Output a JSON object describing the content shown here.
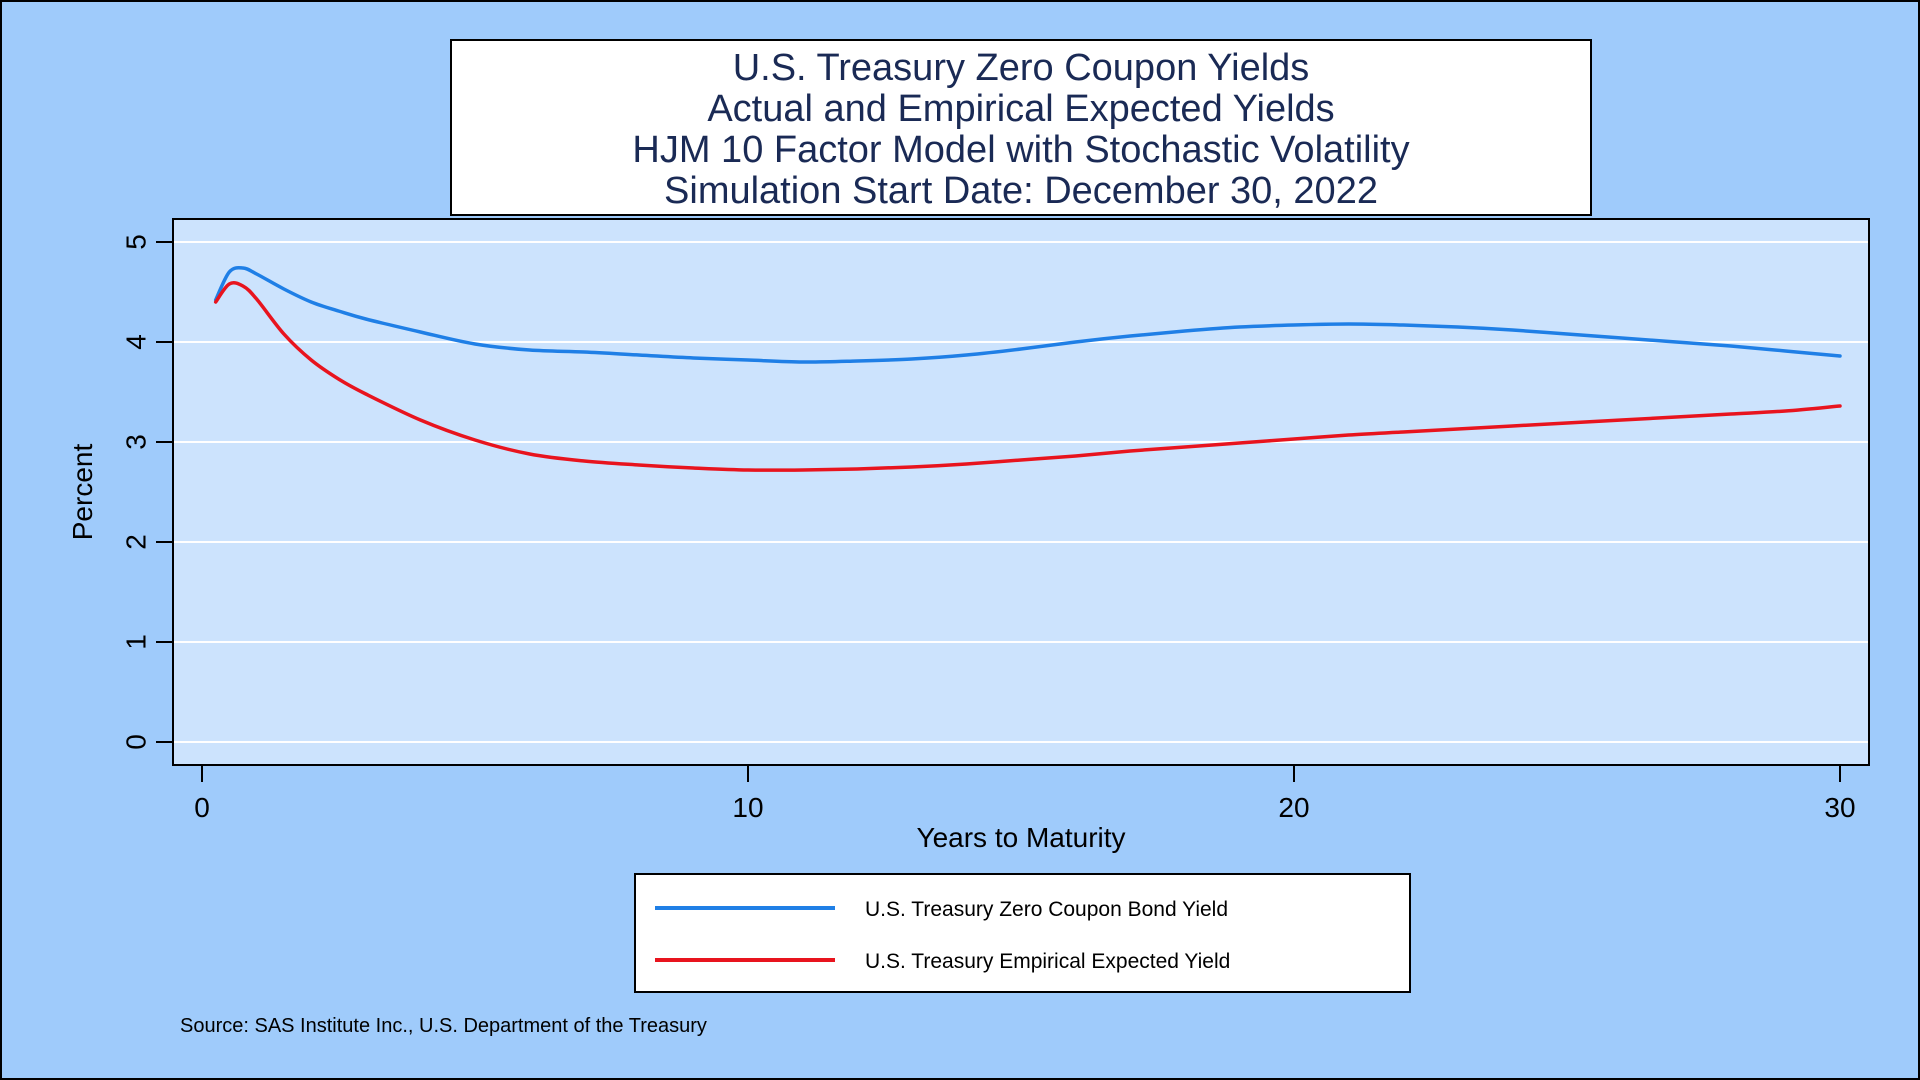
{
  "chart_data": {
    "type": "line",
    "title_lines": [
      "U.S. Treasury Zero Coupon Yields",
      "Actual and Empirical Expected Yields",
      "HJM 10 Factor Model with Stochastic Volatility",
      "Simulation Start Date: December 30, 2022"
    ],
    "xlabel": "Years to Maturity",
    "ylabel": "Percent",
    "xlim": [
      0,
      30
    ],
    "ylim": [
      0,
      5
    ],
    "x_ticks": [
      0,
      10,
      20,
      30
    ],
    "y_ticks": [
      0,
      1,
      2,
      3,
      4,
      5
    ],
    "grid": "horizontal",
    "legend_position": "bottom-center",
    "note": "Source: SAS Institute Inc., U.S. Department of the Treasury",
    "colors": {
      "background": "#9fcbfb",
      "plot_area": "#cce3fd",
      "gridline": "#ffffff"
    },
    "series": [
      {
        "name": "U.S. Treasury Zero Coupon Bond Yield",
        "color": "#1f7fe6",
        "points": [
          [
            0.25,
            4.42
          ],
          [
            0.5,
            4.7
          ],
          [
            0.75,
            4.74
          ],
          [
            1,
            4.68
          ],
          [
            1.5,
            4.53
          ],
          [
            2,
            4.4
          ],
          [
            2.5,
            4.31
          ],
          [
            3,
            4.23
          ],
          [
            4,
            4.1
          ],
          [
            5,
            3.98
          ],
          [
            6,
            3.92
          ],
          [
            7,
            3.9
          ],
          [
            8,
            3.87
          ],
          [
            9,
            3.84
          ],
          [
            10,
            3.82
          ],
          [
            11,
            3.8
          ],
          [
            12,
            3.81
          ],
          [
            13,
            3.83
          ],
          [
            14,
            3.87
          ],
          [
            15,
            3.93
          ],
          [
            16,
            4.0
          ],
          [
            17,
            4.06
          ],
          [
            18,
            4.11
          ],
          [
            19,
            4.15
          ],
          [
            20,
            4.17
          ],
          [
            21,
            4.18
          ],
          [
            22,
            4.17
          ],
          [
            23,
            4.15
          ],
          [
            24,
            4.12
          ],
          [
            25,
            4.08
          ],
          [
            26,
            4.04
          ],
          [
            27,
            4.0
          ],
          [
            28,
            3.96
          ],
          [
            29,
            3.91
          ],
          [
            30,
            3.86
          ]
        ]
      },
      {
        "name": "U.S. Treasury Empirical Expected Yield",
        "color": "#e8141e",
        "points": [
          [
            0.25,
            4.4
          ],
          [
            0.5,
            4.58
          ],
          [
            0.75,
            4.56
          ],
          [
            1,
            4.43
          ],
          [
            1.5,
            4.08
          ],
          [
            2,
            3.82
          ],
          [
            2.5,
            3.63
          ],
          [
            3,
            3.48
          ],
          [
            4,
            3.22
          ],
          [
            5,
            3.02
          ],
          [
            6,
            2.88
          ],
          [
            7,
            2.81
          ],
          [
            8,
            2.77
          ],
          [
            9,
            2.74
          ],
          [
            10,
            2.72
          ],
          [
            11,
            2.72
          ],
          [
            12,
            2.73
          ],
          [
            13,
            2.75
          ],
          [
            14,
            2.78
          ],
          [
            15,
            2.82
          ],
          [
            16,
            2.86
          ],
          [
            17,
            2.91
          ],
          [
            18,
            2.95
          ],
          [
            19,
            2.99
          ],
          [
            20,
            3.03
          ],
          [
            21,
            3.07
          ],
          [
            22,
            3.1
          ],
          [
            23,
            3.13
          ],
          [
            24,
            3.16
          ],
          [
            25,
            3.19
          ],
          [
            26,
            3.22
          ],
          [
            27,
            3.25
          ],
          [
            28,
            3.28
          ],
          [
            29,
            3.31
          ],
          [
            30,
            3.36
          ]
        ]
      }
    ]
  }
}
